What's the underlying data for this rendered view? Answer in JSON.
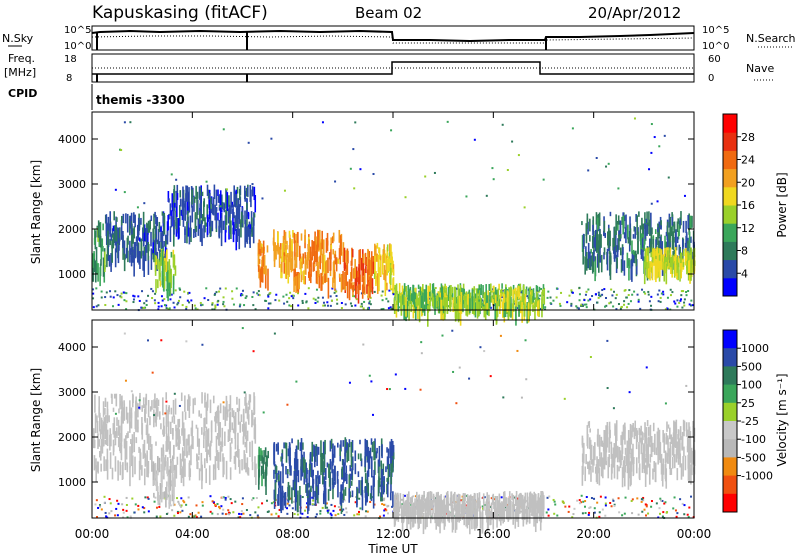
{
  "header": {
    "station": "Kapuskasing (fitACF)",
    "beam": "Beam 02",
    "date": "20/Apr/2012"
  },
  "top_panels": {
    "nsky_label": "N.Sky",
    "nsearch_label": "N.Search",
    "nsky_ticks": [
      "10^5",
      "10^0"
    ],
    "nsearch_ticks": [
      "10^5",
      "10^0"
    ],
    "freq_label": "Freq.",
    "freq_unit": "[MHz]",
    "freq_ticks": [
      "18",
      "8"
    ],
    "nave_label": "Nave",
    "nave_ticks": [
      "60",
      "0"
    ],
    "cpid_label": "CPID",
    "cpid_value": "themis -3300"
  },
  "colors": {
    "power": [
      "#0000ff",
      "#2a4aa8",
      "#2e7a5a",
      "#3aa65a",
      "#9ad02a",
      "#f0d820",
      "#f2a020",
      "#f06a10",
      "#e83010",
      "#ff0000"
    ],
    "velocity": [
      "#0000ff",
      "#2a4aa8",
      "#2e7a5a",
      "#3aa65a",
      "#9ad02a",
      "#c8c8c8",
      "#b8b8b8",
      "#f08a10",
      "#f05010",
      "#ff0000"
    ],
    "ground_scatter": "#c0c0c0"
  },
  "chart_data": [
    {
      "type": "heatmap",
      "name": "power",
      "ylabel": "Slant Range [km]",
      "xlabel": "Time UT",
      "ylim": [
        200,
        4600
      ],
      "xlim": [
        0,
        24
      ],
      "yticks": [
        "1000",
        "2000",
        "3000",
        "4000"
      ],
      "colorbar": {
        "label": "Power [dB]",
        "ticks": [
          "4",
          "8",
          "12",
          "16",
          "20",
          "24",
          "28"
        ],
        "range": [
          0,
          32
        ]
      },
      "regions": [
        {
          "t0": 0.0,
          "t1": 0.5,
          "r0": 1100,
          "r1": 2200,
          "value": 10
        },
        {
          "t0": 0.5,
          "t1": 3.0,
          "r0": 1400,
          "r1": 2400,
          "value": 6
        },
        {
          "t0": 3.0,
          "t1": 6.5,
          "r0": 2000,
          "r1": 3000,
          "value": 5
        },
        {
          "t0": 2.5,
          "t1": 3.3,
          "r0": 800,
          "r1": 1600,
          "value": 14
        },
        {
          "t0": 6.6,
          "t1": 7.0,
          "r0": 1100,
          "r1": 1800,
          "value": 22
        },
        {
          "t0": 7.2,
          "t1": 8.0,
          "r0": 1200,
          "r1": 2000,
          "value": 20
        },
        {
          "t0": 8.0,
          "t1": 10.0,
          "r0": 900,
          "r1": 2000,
          "value": 22
        },
        {
          "t0": 10.0,
          "t1": 11.2,
          "r0": 700,
          "r1": 1600,
          "value": 24
        },
        {
          "t0": 11.2,
          "t1": 12.0,
          "r0": 800,
          "r1": 1700,
          "value": 18
        },
        {
          "t0": 12.0,
          "t1": 18.0,
          "r0": 300,
          "r1": 800,
          "value": 14
        },
        {
          "t0": 19.5,
          "t1": 24.0,
          "r0": 1300,
          "r1": 2400,
          "value": 7
        },
        {
          "t0": 22.0,
          "t1": 24.0,
          "r0": 1200,
          "r1": 1600,
          "value": 16
        }
      ]
    },
    {
      "type": "heatmap",
      "name": "velocity",
      "ylabel": "Slant Range [km]",
      "xlabel": "Time UT",
      "ylim": [
        200,
        4600
      ],
      "xlim": [
        0,
        24
      ],
      "yticks": [
        "1000",
        "2000",
        "3000",
        "4000"
      ],
      "xticks": [
        "00:00",
        "04:00",
        "08:00",
        "12:00",
        "16:00",
        "20:00",
        "00:00"
      ],
      "colorbar": {
        "label": "Velocity [m s⁻¹]",
        "ticks": [
          "1000",
          "500",
          "100",
          "25",
          "-25",
          "-100",
          "-500",
          "-1000"
        ]
      },
      "regions": [
        {
          "t0": 0.0,
          "t1": 6.5,
          "r0": 1300,
          "r1": 3000,
          "value": "ground"
        },
        {
          "t0": 2.4,
          "t1": 3.3,
          "r0": 700,
          "r1": 1600,
          "value": -300
        },
        {
          "t0": 6.6,
          "t1": 7.0,
          "r0": 1100,
          "r1": 1800,
          "value": 80
        },
        {
          "t0": 7.2,
          "t1": 12.0,
          "r0": 700,
          "r1": 2000,
          "value": 150
        },
        {
          "t0": 12.0,
          "t1": 18.0,
          "r0": 300,
          "r1": 800,
          "value": "ground"
        },
        {
          "t0": 19.5,
          "t1": 24.0,
          "r0": 1300,
          "r1": 2400,
          "value": "ground"
        }
      ]
    }
  ]
}
